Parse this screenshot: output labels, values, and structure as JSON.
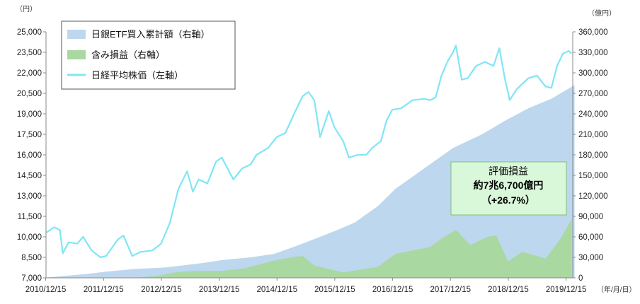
{
  "chart_data": {
    "type": "area",
    "x_ticks": [
      "2010/12/15",
      "2011/12/15",
      "2012/12/15",
      "2013/12/15",
      "2014/12/15",
      "2015/12/15",
      "2016/12/15",
      "2017/12/15",
      "2018/12/15",
      "2019/12/15"
    ],
    "x_unit": "（年/月/日）",
    "left_axis": {
      "unit": "（円）",
      "ylim": [
        7000,
        25000
      ],
      "ticks": [
        "7,000",
        "8,500",
        "10,000",
        "11,500",
        "13,000",
        "14,500",
        "16,000",
        "17,500",
        "19,000",
        "20,500",
        "22,000",
        "23,500",
        "25,000"
      ]
    },
    "right_axis": {
      "unit": "（億円）",
      "ylim": [
        0,
        360000
      ],
      "ticks": [
        "0",
        "30,000",
        "60,000",
        "90,000",
        "120,000",
        "150,000",
        "180,000",
        "210,000",
        "240,000",
        "270,000",
        "300,000",
        "330,000",
        "360,000"
      ]
    },
    "legend": {
      "position": "top-left",
      "entries": [
        "日銀ETF買入累計額（右軸）",
        "含み損益（右軸）",
        "日経平均株価（左軸）"
      ]
    },
    "series": [
      {
        "name": "日銀ETF買入累計額（右軸）",
        "axis": "right",
        "kind": "area",
        "color": "#bdd7ee",
        "x": [
          2010.96,
          2011.3,
          2011.7,
          2012.0,
          2012.5,
          2013.0,
          2013.3,
          2013.7,
          2014.0,
          2014.5,
          2014.9,
          2015.3,
          2015.7,
          2016.0,
          2016.3,
          2016.7,
          2017.0,
          2017.5,
          2018.0,
          2018.5,
          2018.9,
          2019.3,
          2019.7,
          2020.1
        ],
        "values": [
          500,
          3000,
          6000,
          9000,
          13000,
          15000,
          18000,
          22000,
          26000,
          30000,
          35000,
          47000,
          60000,
          70000,
          81000,
          105000,
          130000,
          160000,
          190000,
          210000,
          230000,
          248000,
          262000,
          282000
        ]
      },
      {
        "name": "含み損益（右軸）",
        "axis": "right",
        "kind": "area",
        "color": "#a9d8a0",
        "x": [
          2010.96,
          2011.3,
          2011.7,
          2012.0,
          2012.5,
          2012.9,
          2013.2,
          2013.5,
          2014.0,
          2014.4,
          2014.9,
          2015.2,
          2015.4,
          2015.6,
          2015.9,
          2016.1,
          2016.4,
          2016.7,
          2017.0,
          2017.3,
          2017.6,
          2017.85,
          2018.05,
          2018.3,
          2018.6,
          2018.75,
          2018.95,
          2019.2,
          2019.45,
          2019.6,
          2019.85,
          2020.05
        ],
        "values": [
          0,
          0,
          0,
          0,
          0,
          3000,
          8000,
          10000,
          10000,
          14000,
          25000,
          30000,
          32000,
          18000,
          12000,
          8000,
          12000,
          16000,
          35000,
          40000,
          45000,
          60000,
          70000,
          48000,
          60000,
          62000,
          24000,
          38000,
          32000,
          28000,
          56000,
          86000
        ]
      },
      {
        "name": "日経平均株価（左軸）",
        "axis": "left",
        "kind": "line",
        "color": "#7fe6f5",
        "x": [
          2010.96,
          2011.1,
          2011.2,
          2011.25,
          2011.35,
          2011.5,
          2011.6,
          2011.75,
          2011.9,
          2012.0,
          2012.2,
          2012.3,
          2012.45,
          2012.6,
          2012.8,
          2012.95,
          2013.1,
          2013.25,
          2013.4,
          2013.5,
          2013.6,
          2013.75,
          2013.9,
          2014.0,
          2014.2,
          2014.35,
          2014.5,
          2014.6,
          2014.8,
          2014.95,
          2015.1,
          2015.25,
          2015.4,
          2015.5,
          2015.6,
          2015.7,
          2015.85,
          2015.95,
          2016.1,
          2016.2,
          2016.35,
          2016.5,
          2016.6,
          2016.75,
          2016.85,
          2016.95,
          2017.1,
          2017.3,
          2017.5,
          2017.6,
          2017.7,
          2017.8,
          2017.9,
          2018.0,
          2018.05,
          2018.15,
          2018.25,
          2018.4,
          2018.55,
          2018.7,
          2018.8,
          2018.9,
          2018.98,
          2019.1,
          2019.3,
          2019.45,
          2019.6,
          2019.7,
          2019.8,
          2019.9,
          2020.0,
          2020.05
        ],
        "values": [
          10300,
          10700,
          10500,
          8800,
          9600,
          9500,
          10000,
          9000,
          8500,
          8600,
          9800,
          10100,
          8600,
          8900,
          9000,
          9500,
          11000,
          13500,
          14800,
          13300,
          14200,
          13900,
          15500,
          15800,
          14200,
          15000,
          15300,
          16000,
          16500,
          17300,
          17600,
          19000,
          20300,
          20600,
          20000,
          17300,
          19200,
          18000,
          17000,
          15800,
          16000,
          16000,
          16500,
          17000,
          18500,
          19300,
          19400,
          20000,
          20100,
          20000,
          20200,
          21800,
          22800,
          23500,
          24000,
          21500,
          21600,
          22500,
          22800,
          22500,
          23800,
          21500,
          20000,
          20800,
          21600,
          21800,
          21000,
          20900,
          22500,
          23400,
          23600,
          23400
        ]
      }
    ],
    "annotation": {
      "title": "評価損益",
      "line1": "約7兆6,700億円",
      "line2": "（+26.7%）"
    }
  },
  "colors": {
    "etf_area": "#bdd7ee",
    "gain_area": "#a9d8a0",
    "nikkei_line": "#7fe6f5",
    "annotation_fill": "#d9f7d9",
    "annotation_border": "#7fbf7f"
  }
}
